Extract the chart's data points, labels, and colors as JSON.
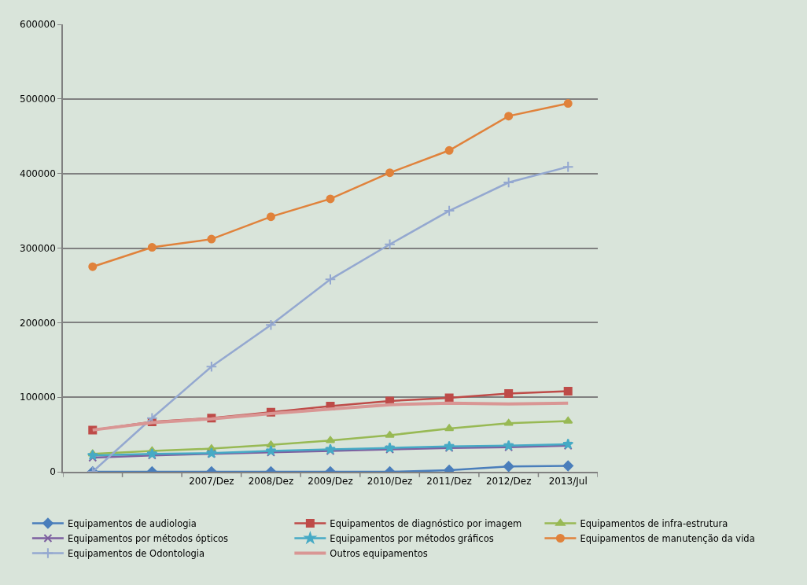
{
  "chart_data": {
    "type": "line",
    "categories": [
      null,
      null,
      "2007/Dez",
      "2008/Dez",
      "2009/Dez",
      "2010/Dez",
      "2011/Dez",
      "2012/Dez",
      "2013/Jul"
    ],
    "ylim": [
      0,
      600000
    ],
    "yticks": [
      0,
      100000,
      200000,
      300000,
      400000,
      500000,
      600000
    ],
    "grid": "y",
    "legend": "bottom",
    "series": [
      {
        "name": "Equipamentos de audiologia",
        "color": "#4a7ebb",
        "marker": "diamond",
        "values": [
          0,
          0,
          0,
          0,
          0,
          0,
          2000,
          7000,
          8000
        ]
      },
      {
        "name": "Equipamentos de diagnóstico por imagem",
        "color": "#be4b48",
        "marker": "square",
        "values": [
          56000,
          67000,
          72000,
          80000,
          88000,
          95000,
          99000,
          105000,
          108000
        ]
      },
      {
        "name": "Equipamentos de infra-estrutura",
        "color": "#98b954",
        "marker": "triangle",
        "values": [
          24000,
          28000,
          31000,
          36000,
          42000,
          49000,
          58000,
          65000,
          68000
        ]
      },
      {
        "name": "Equipamentos por métodos ópticos",
        "color": "#7d60a0",
        "marker": "cross",
        "values": [
          19000,
          22000,
          24000,
          26000,
          28000,
          30000,
          32000,
          33000,
          35000
        ]
      },
      {
        "name": "Equipamentos por métodos gráficos",
        "color": "#46aac5",
        "marker": "star",
        "values": [
          22000,
          24000,
          25000,
          28000,
          30000,
          32000,
          34000,
          35000,
          37000
        ]
      },
      {
        "name": "Equipamentos de manutenção da vida",
        "color": "#e0823b",
        "marker": "circle",
        "values": [
          275000,
          301000,
          312000,
          342000,
          366000,
          401000,
          431000,
          477000,
          494000
        ]
      },
      {
        "name": "Equipamentos de Odontologia",
        "color": "#94a8d0",
        "marker": "plus",
        "values": [
          0,
          72000,
          141000,
          197000,
          258000,
          305000,
          350000,
          388000,
          409000
        ]
      },
      {
        "name": "Outros equipamentos",
        "color": "#d99694",
        "marker": "none",
        "values": [
          56000,
          66000,
          71000,
          78000,
          84000,
          90000,
          92000,
          91000,
          92000
        ]
      }
    ]
  }
}
